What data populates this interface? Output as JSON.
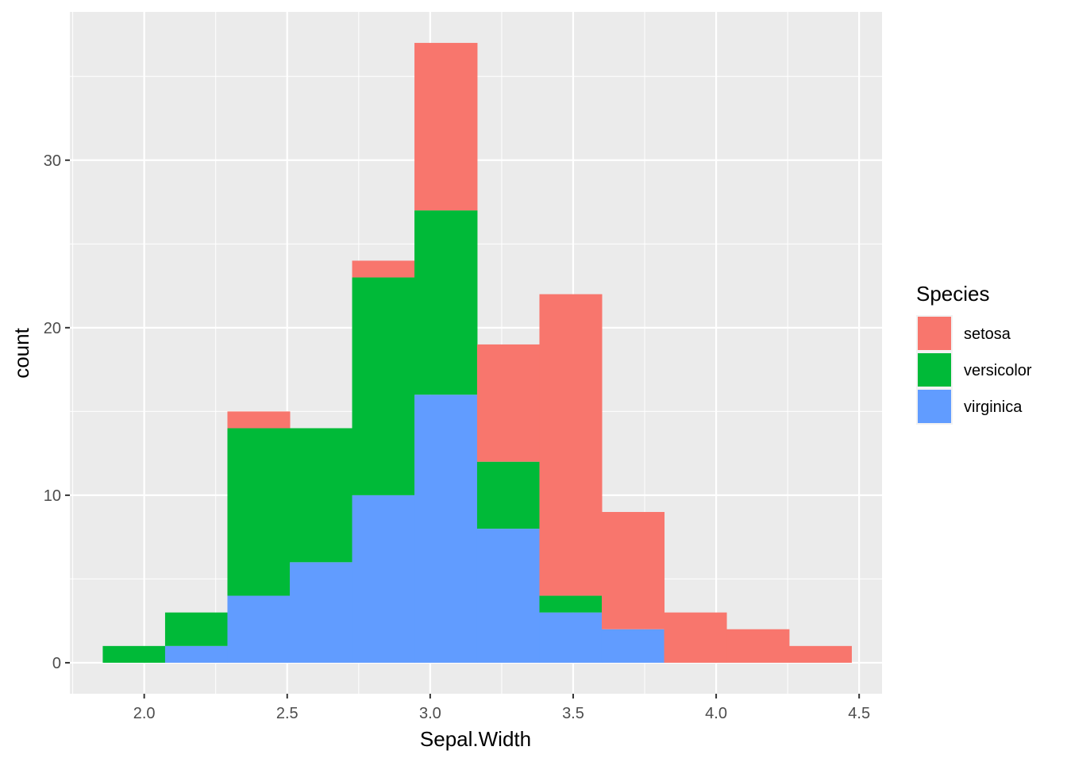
{
  "chart_data": {
    "type": "bar",
    "subtype": "stacked-histogram",
    "xlabel": "Sepal.Width",
    "ylabel": "count",
    "xlim": [
      1.74,
      4.58
    ],
    "ylim": [
      -1.85,
      38.85
    ],
    "x_ticks": [
      2.0,
      2.5,
      3.0,
      3.5,
      4.0,
      4.5
    ],
    "x_tick_labels": [
      "2.0",
      "2.5",
      "3.0",
      "3.5",
      "4.0",
      "4.5"
    ],
    "y_ticks": [
      0,
      10,
      20,
      30
    ],
    "y_tick_labels": [
      "0",
      "10",
      "20",
      "30"
    ],
    "grid": true,
    "legend_placement": "right",
    "legend_title": "Species",
    "bins": [
      {
        "x_min": 1.855,
        "x_max": 2.073
      },
      {
        "x_min": 2.073,
        "x_max": 2.291
      },
      {
        "x_min": 2.291,
        "x_max": 2.509
      },
      {
        "x_min": 2.509,
        "x_max": 2.727
      },
      {
        "x_min": 2.727,
        "x_max": 2.945
      },
      {
        "x_min": 2.945,
        "x_max": 3.164
      },
      {
        "x_min": 3.164,
        "x_max": 3.382
      },
      {
        "x_min": 3.382,
        "x_max": 3.6
      },
      {
        "x_min": 3.6,
        "x_max": 3.818
      },
      {
        "x_min": 3.818,
        "x_max": 4.036
      },
      {
        "x_min": 4.036,
        "x_max": 4.255
      },
      {
        "x_min": 4.255,
        "x_max": 4.473
      }
    ],
    "series": [
      {
        "name": "setosa",
        "color": "#F8766D",
        "values": [
          0,
          0,
          1,
          0,
          1,
          10,
          7,
          18,
          7,
          3,
          2,
          1
        ]
      },
      {
        "name": "versicolor",
        "color": "#00BA38",
        "values": [
          1,
          2,
          10,
          8,
          13,
          11,
          4,
          1,
          0,
          0,
          0,
          0
        ]
      },
      {
        "name": "virginica",
        "color": "#619CFF",
        "values": [
          0,
          1,
          4,
          6,
          10,
          16,
          8,
          3,
          2,
          0,
          0,
          0
        ]
      }
    ]
  }
}
